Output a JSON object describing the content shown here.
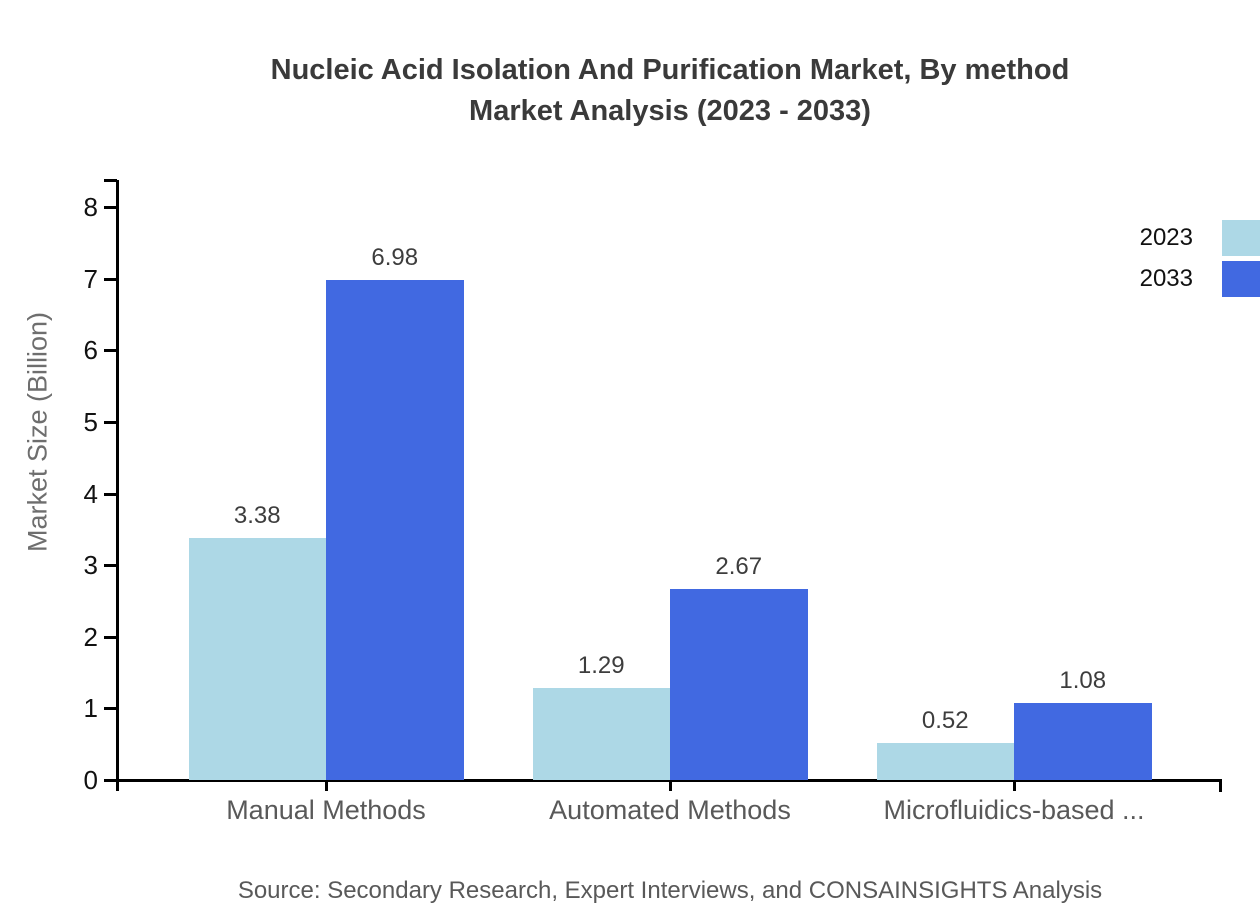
{
  "chart_data": {
    "type": "bar",
    "title_lines": {
      "line1": "Nucleic Acid Isolation And Purification Market, By method",
      "line2": "Market Analysis (2023 - 2033)"
    },
    "categories": [
      "Manual Methods",
      "Automated Methods",
      "Microfluidics-based ..."
    ],
    "series": [
      {
        "name": "2023",
        "color": "#add8e6",
        "values": [
          3.38,
          1.29,
          0.52
        ]
      },
      {
        "name": "2033",
        "color": "#4169e1",
        "values": [
          6.98,
          2.67,
          1.08
        ]
      }
    ],
    "value_labels": [
      [
        "3.38",
        "1.29",
        "0.52"
      ],
      [
        "6.98",
        "2.67",
        "1.08"
      ]
    ],
    "xlabel": "",
    "ylabel": "Market Size (Billion)",
    "ylim": [
      0,
      8
    ],
    "yticks": [
      0,
      1,
      2,
      3,
      4,
      5,
      6,
      7,
      8
    ],
    "grid": false,
    "legend_position": "top-right",
    "axis_color": "#000000",
    "background_color": "#ffffff",
    "source": "Source: Secondary Research, Expert Interviews, and CONSAINSIGHTS Analysis"
  }
}
